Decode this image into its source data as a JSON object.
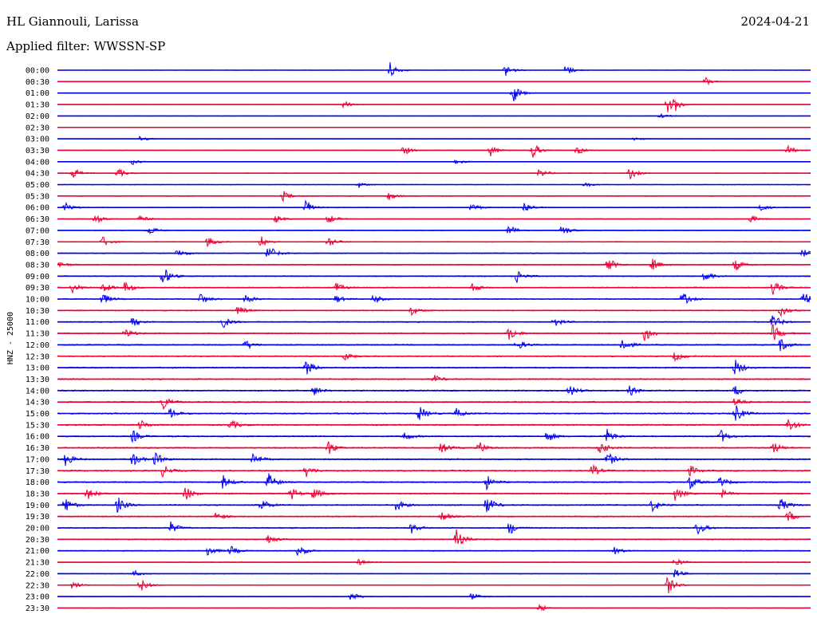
{
  "header": {
    "station": "HL Giannouli, Larissa",
    "date": "2024-04-21",
    "filter": "Applied filter: WWSSN-SP"
  },
  "chart_data": {
    "type": "line",
    "ylabel": "HNZ - 25000",
    "colors": [
      "#0000ee",
      "#ee0033"
    ],
    "rows": [
      {
        "label": "00:00",
        "events": [
          [
            0.44,
            1.0
          ],
          [
            0.595,
            0.7
          ],
          [
            0.675,
            0.6
          ]
        ],
        "noise": 0.15
      },
      {
        "label": "00:30",
        "events": [
          [
            0.86,
            0.5
          ]
        ],
        "noise": 0.15
      },
      {
        "label": "01:00",
        "events": [
          [
            0.605,
            1.0
          ]
        ],
        "noise": 0.15
      },
      {
        "label": "01:30",
        "events": [
          [
            0.38,
            0.4
          ],
          [
            0.81,
            0.8
          ],
          [
            0.82,
            0.5
          ]
        ],
        "noise": 0.15
      },
      {
        "label": "02:00",
        "events": [
          [
            0.8,
            0.3
          ]
        ],
        "noise": 0.18
      },
      {
        "label": "02:30",
        "events": [],
        "noise": 0.15
      },
      {
        "label": "03:00",
        "events": [
          [
            0.11,
            0.3
          ],
          [
            0.765,
            0.3
          ]
        ],
        "noise": 0.15
      },
      {
        "label": "03:30",
        "events": [
          [
            0.46,
            0.5
          ],
          [
            0.575,
            0.6
          ],
          [
            0.63,
            0.9
          ],
          [
            0.69,
            0.5
          ],
          [
            0.97,
            0.5
          ]
        ],
        "noise": 0.2
      },
      {
        "label": "04:00",
        "events": [
          [
            0.1,
            0.3
          ],
          [
            0.53,
            0.3
          ]
        ],
        "noise": 0.2
      },
      {
        "label": "04:30",
        "events": [
          [
            0.02,
            0.6
          ],
          [
            0.08,
            0.5
          ],
          [
            0.64,
            0.5
          ],
          [
            0.76,
            0.6
          ]
        ],
        "noise": 0.25
      },
      {
        "label": "05:00",
        "events": [
          [
            0.4,
            0.3
          ],
          [
            0.7,
            0.3
          ]
        ],
        "noise": 0.25
      },
      {
        "label": "05:30",
        "events": [
          [
            0.3,
            0.5
          ],
          [
            0.44,
            0.4
          ]
        ],
        "noise": 0.3
      },
      {
        "label": "06:00",
        "events": [
          [
            0.01,
            0.5
          ],
          [
            0.33,
            0.8
          ],
          [
            0.55,
            0.5
          ],
          [
            0.62,
            0.6
          ],
          [
            0.93,
            0.5
          ]
        ],
        "noise": 0.3
      },
      {
        "label": "06:30",
        "events": [
          [
            0.05,
            0.5
          ],
          [
            0.11,
            0.4
          ],
          [
            0.29,
            0.4
          ],
          [
            0.36,
            0.5
          ],
          [
            0.92,
            0.4
          ]
        ],
        "noise": 0.3
      },
      {
        "label": "07:00",
        "events": [
          [
            0.12,
            0.5
          ],
          [
            0.6,
            0.6
          ],
          [
            0.67,
            0.6
          ]
        ],
        "noise": 0.35
      },
      {
        "label": "07:30",
        "events": [
          [
            0.06,
            0.5
          ],
          [
            0.2,
            0.5
          ],
          [
            0.27,
            0.6
          ],
          [
            0.36,
            0.6
          ]
        ],
        "noise": 0.35
      },
      {
        "label": "08:00",
        "events": [
          [
            0.28,
            0.9
          ],
          [
            0.16,
            0.5
          ],
          [
            0.99,
            0.4
          ]
        ],
        "noise": 0.4
      },
      {
        "label": "08:30",
        "events": [
          [
            0.0,
            0.5
          ],
          [
            0.73,
            0.8
          ],
          [
            0.79,
            0.6
          ],
          [
            0.9,
            0.6
          ]
        ],
        "noise": 0.4
      },
      {
        "label": "09:00",
        "events": [
          [
            0.14,
            1.0
          ],
          [
            0.61,
            0.7
          ],
          [
            0.86,
            0.6
          ]
        ],
        "noise": 0.45
      },
      {
        "label": "09:30",
        "events": [
          [
            0.02,
            0.5
          ],
          [
            0.06,
            0.6
          ],
          [
            0.09,
            0.6
          ],
          [
            0.37,
            0.5
          ],
          [
            0.55,
            0.5
          ],
          [
            0.95,
            0.7
          ]
        ],
        "noise": 0.45
      },
      {
        "label": "10:00",
        "events": [
          [
            0.06,
            0.6
          ],
          [
            0.19,
            0.6
          ],
          [
            0.25,
            0.5
          ],
          [
            0.37,
            0.4
          ],
          [
            0.42,
            0.5
          ],
          [
            0.83,
            0.7
          ],
          [
            0.99,
            0.9
          ]
        ],
        "noise": 0.45
      },
      {
        "label": "10:30",
        "events": [
          [
            0.24,
            0.5
          ],
          [
            0.47,
            0.5
          ],
          [
            0.96,
            0.6
          ]
        ],
        "noise": 0.45
      },
      {
        "label": "11:00",
        "events": [
          [
            0.1,
            0.5
          ],
          [
            0.22,
            0.6
          ],
          [
            0.66,
            0.5
          ],
          [
            0.95,
            0.8
          ]
        ],
        "noise": 0.45
      },
      {
        "label": "11:30",
        "events": [
          [
            0.09,
            0.5
          ],
          [
            0.6,
            0.7
          ],
          [
            0.78,
            0.9
          ],
          [
            0.95,
            0.9
          ]
        ],
        "noise": 0.5
      },
      {
        "label": "12:00",
        "events": [
          [
            0.25,
            0.5
          ],
          [
            0.61,
            0.6
          ],
          [
            0.75,
            0.8
          ],
          [
            0.96,
            0.7
          ]
        ],
        "noise": 0.5
      },
      {
        "label": "12:30",
        "events": [
          [
            0.38,
            0.5
          ],
          [
            0.82,
            0.5
          ]
        ],
        "noise": 0.5
      },
      {
        "label": "13:00",
        "events": [
          [
            0.33,
            0.8
          ],
          [
            0.9,
            0.9
          ]
        ],
        "noise": 0.55
      },
      {
        "label": "13:30",
        "events": [
          [
            0.5,
            0.4
          ]
        ],
        "noise": 0.55
      },
      {
        "label": "14:00",
        "events": [
          [
            0.34,
            0.5
          ],
          [
            0.68,
            0.6
          ],
          [
            0.76,
            0.5
          ],
          [
            0.9,
            0.5
          ]
        ],
        "noise": 0.55
      },
      {
        "label": "14:30",
        "events": [
          [
            0.14,
            0.8
          ],
          [
            0.9,
            0.5
          ]
        ],
        "noise": 0.55
      },
      {
        "label": "15:00",
        "events": [
          [
            0.15,
            0.5
          ],
          [
            0.48,
            0.8
          ],
          [
            0.53,
            0.5
          ],
          [
            0.9,
            0.9
          ]
        ],
        "noise": 0.55
      },
      {
        "label": "15:30",
        "events": [
          [
            0.11,
            0.5
          ],
          [
            0.23,
            0.5
          ],
          [
            0.97,
            0.8
          ]
        ],
        "noise": 0.55
      },
      {
        "label": "16:00",
        "events": [
          [
            0.1,
            0.6
          ],
          [
            0.46,
            0.5
          ],
          [
            0.65,
            0.6
          ],
          [
            0.73,
            0.7
          ],
          [
            0.88,
            0.7
          ]
        ],
        "noise": 0.55
      },
      {
        "label": "16:30",
        "events": [
          [
            0.36,
            0.7
          ],
          [
            0.51,
            0.6
          ],
          [
            0.56,
            0.6
          ],
          [
            0.72,
            0.7
          ],
          [
            0.95,
            0.6
          ]
        ],
        "noise": 0.55
      },
      {
        "label": "17:00",
        "events": [
          [
            0.01,
            0.7
          ],
          [
            0.1,
            0.7
          ],
          [
            0.13,
            0.7
          ],
          [
            0.26,
            0.7
          ],
          [
            0.73,
            0.8
          ]
        ],
        "noise": 0.55
      },
      {
        "label": "17:30",
        "events": [
          [
            0.14,
            0.6
          ],
          [
            0.33,
            0.6
          ],
          [
            0.71,
            0.6
          ],
          [
            0.84,
            0.5
          ]
        ],
        "noise": 0.55
      },
      {
        "label": "18:00",
        "events": [
          [
            0.22,
            0.7
          ],
          [
            0.28,
            0.9
          ],
          [
            0.57,
            0.7
          ],
          [
            0.84,
            0.7
          ],
          [
            0.88,
            0.5
          ]
        ],
        "noise": 0.55
      },
      {
        "label": "18:30",
        "events": [
          [
            0.04,
            0.6
          ],
          [
            0.17,
            0.7
          ],
          [
            0.31,
            0.6
          ],
          [
            0.34,
            0.6
          ],
          [
            0.82,
            0.7
          ],
          [
            0.88,
            0.5
          ]
        ],
        "noise": 0.55
      },
      {
        "label": "19:00",
        "events": [
          [
            0.01,
            0.8
          ],
          [
            0.08,
            0.8
          ],
          [
            0.27,
            0.7
          ],
          [
            0.45,
            0.6
          ],
          [
            0.57,
            0.9
          ],
          [
            0.79,
            0.7
          ],
          [
            0.96,
            0.7
          ]
        ],
        "noise": 0.55
      },
      {
        "label": "19:30",
        "events": [
          [
            0.21,
            0.5
          ],
          [
            0.51,
            0.5
          ],
          [
            0.97,
            0.6
          ]
        ],
        "noise": 0.5
      },
      {
        "label": "20:00",
        "events": [
          [
            0.15,
            0.6
          ],
          [
            0.47,
            0.5
          ],
          [
            0.6,
            0.7
          ],
          [
            0.85,
            0.7
          ]
        ],
        "noise": 0.5
      },
      {
        "label": "20:30",
        "events": [
          [
            0.28,
            0.5
          ],
          [
            0.53,
            1.0
          ]
        ],
        "noise": 0.45
      },
      {
        "label": "21:00",
        "events": [
          [
            0.2,
            0.6
          ],
          [
            0.23,
            0.5
          ],
          [
            0.32,
            0.6
          ],
          [
            0.74,
            0.4
          ]
        ],
        "noise": 0.4
      },
      {
        "label": "21:30",
        "events": [
          [
            0.4,
            0.3
          ],
          [
            0.82,
            0.5
          ]
        ],
        "noise": 0.3
      },
      {
        "label": "22:00",
        "events": [
          [
            0.1,
            0.4
          ],
          [
            0.82,
            0.5
          ]
        ],
        "noise": 0.3
      },
      {
        "label": "22:30",
        "events": [
          [
            0.02,
            0.4
          ],
          [
            0.11,
            0.7
          ],
          [
            0.81,
            0.9
          ]
        ],
        "noise": 0.3
      },
      {
        "label": "23:00",
        "events": [
          [
            0.39,
            0.5
          ],
          [
            0.55,
            0.4
          ]
        ],
        "noise": 0.25
      },
      {
        "label": "23:30",
        "events": [
          [
            0.64,
            0.4
          ]
        ],
        "noise": 0.25
      }
    ]
  }
}
